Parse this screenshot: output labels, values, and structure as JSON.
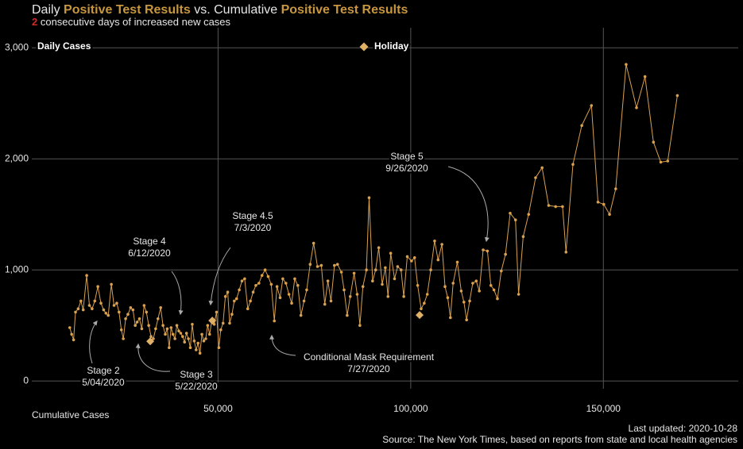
{
  "chart_data": {
    "type": "line",
    "title_parts": [
      "Daily ",
      "Positive Test Results",
      " vs. Cumulative ",
      "Positive Test Results"
    ],
    "title_accent_color": "#c8963e",
    "subtitle_count": 2,
    "subtitle_count_color": "#d42a2a",
    "subtitle": " consecutive days of increased new cases",
    "ylabel": "Daily Cases",
    "xlabel": "Cumulative Cases",
    "xlim": [
      0,
      185000
    ],
    "ylim": [
      -70,
      3180
    ],
    "xticks": [
      {
        "value": 50000,
        "label": "50,000"
      },
      {
        "value": 100000,
        "label": "100,000"
      },
      {
        "value": 150000,
        "label": "150,000"
      }
    ],
    "yticks": [
      0,
      {
        "value": 1000,
        "label": "1,000"
      },
      {
        "value": 2000,
        "label": "2,000"
      },
      {
        "value": 3000,
        "label": "3,000"
      }
    ],
    "grid": true,
    "series": [
      {
        "color": "#d9a04e",
        "x": [
          11500,
          12000,
          12500,
          13000,
          13700,
          14400,
          15000,
          15900,
          16600,
          17300,
          18000,
          18800,
          19600,
          20300,
          20900,
          21500,
          22300,
          23000,
          23700,
          24300,
          24900,
          25400,
          26000,
          26600,
          27300,
          27900,
          28500,
          29000,
          29600,
          30200,
          30800,
          31400,
          32000,
          32600,
          33200,
          33800,
          34400,
          35100,
          35700,
          36300,
          36800,
          37300,
          37800,
          38300,
          38800,
          39300,
          39800,
          40300,
          40800,
          41300,
          41800,
          42300,
          42800,
          43300,
          43800,
          44300,
          44800,
          45300,
          45800,
          46300,
          46800,
          47300,
          47800,
          48400,
          49000,
          49600,
          50200,
          50700,
          51300,
          51900,
          52500,
          53000,
          53600,
          54200,
          54800,
          55500,
          56200,
          56900,
          57700,
          58400,
          59100,
          59800,
          60600,
          61400,
          62200,
          63000,
          63800,
          64600,
          65300,
          66100,
          66800,
          67600,
          68400,
          69100,
          69900,
          70700,
          71500,
          72300,
          73000,
          73900,
          74800,
          75800,
          76800,
          77700,
          78500,
          79300,
          80200,
          81000,
          82000,
          82700,
          83500,
          84300,
          85300,
          86100,
          86800,
          87600,
          88500,
          89200,
          90100,
          90900,
          91700,
          92600,
          93400,
          94100,
          94800,
          95800,
          96600,
          97500,
          98200,
          99100,
          100200,
          101000,
          101800,
          102700,
          103500,
          104300,
          105200,
          106200,
          107100,
          108100,
          108900,
          109600,
          110300,
          111000,
          112100,
          113100,
          113800,
          114500,
          115300,
          116100,
          117000,
          117800,
          118800,
          119900,
          120800,
          121600,
          122500,
          123500,
          124600,
          125800,
          127200,
          128000,
          129200,
          130600,
          132400,
          134100,
          135800,
          137600,
          139400,
          140300,
          142100,
          144400,
          146900,
          148600,
          150100,
          151600,
          153200,
          155900,
          158600,
          160800,
          163000,
          164900,
          166700,
          169200
        ],
        "values": [
          480,
          420,
          370,
          620,
          650,
          720,
          640,
          950,
          680,
          650,
          720,
          850,
          700,
          640,
          610,
          590,
          870,
          680,
          700,
          620,
          460,
          380,
          560,
          600,
          660,
          640,
          500,
          530,
          560,
          470,
          680,
          620,
          500,
          400,
          380,
          470,
          560,
          660,
          500,
          420,
          470,
          300,
          480,
          420,
          380,
          500,
          450,
          430,
          400,
          350,
          430,
          380,
          300,
          510,
          360,
          280,
          340,
          250,
          420,
          360,
          380,
          500,
          420,
          550,
          510,
          620,
          300,
          460,
          520,
          760,
          800,
          520,
          600,
          720,
          740,
          820,
          900,
          920,
          650,
          720,
          800,
          860,
          880,
          950,
          1000,
          940,
          870,
          540,
          850,
          750,
          920,
          880,
          780,
          700,
          920,
          860,
          590,
          720,
          820,
          1050,
          1240,
          1030,
          1040,
          690,
          900,
          720,
          1040,
          1050,
          980,
          820,
          590,
          760,
          970,
          780,
          500,
          850,
          1000,
          1650,
          900,
          1000,
          1200,
          870,
          1020,
          760,
          1150,
          920,
          1030,
          1000,
          760,
          1120,
          1080,
          1110,
          860,
          650,
          700,
          780,
          1000,
          1260,
          1090,
          1230,
          850,
          750,
          570,
          880,
          1070,
          810,
          710,
          550,
          720,
          880,
          900,
          810,
          1180,
          1170,
          860,
          820,
          740,
          990,
          1140,
          1510,
          1450,
          780,
          1300,
          1500,
          1830,
          1920,
          1580,
          1570,
          1570,
          1160,
          1950,
          2300,
          2480,
          1610,
          1590,
          1500,
          1730,
          2850,
          2460,
          2740,
          2150,
          1970,
          1980,
          2570
        ]
      },
      {
        "name": "Holiday",
        "color": "#e0b066",
        "marker": "diamond",
        "x": [
          32400,
          48500,
          102300
        ],
        "values": [
          357,
          543,
          593
        ]
      }
    ],
    "annotations": [
      {
        "label": "Stage 2",
        "date": "5/04/2020"
      },
      {
        "label": "Stage 3",
        "date": "5/22/2020"
      },
      {
        "label": "Stage 4",
        "date": "6/12/2020"
      },
      {
        "label": "Stage 4.5",
        "date": "7/3/2020"
      },
      {
        "label": "Conditional Mask Requirement",
        "date": "7/27/2020"
      },
      {
        "label": "Stage 5",
        "date": "9/26/2020"
      }
    ],
    "footer": {
      "updated": "Last updated: 2020-10-28",
      "source": "Source: The New York Times, based on reports from state and local health agencies"
    }
  }
}
